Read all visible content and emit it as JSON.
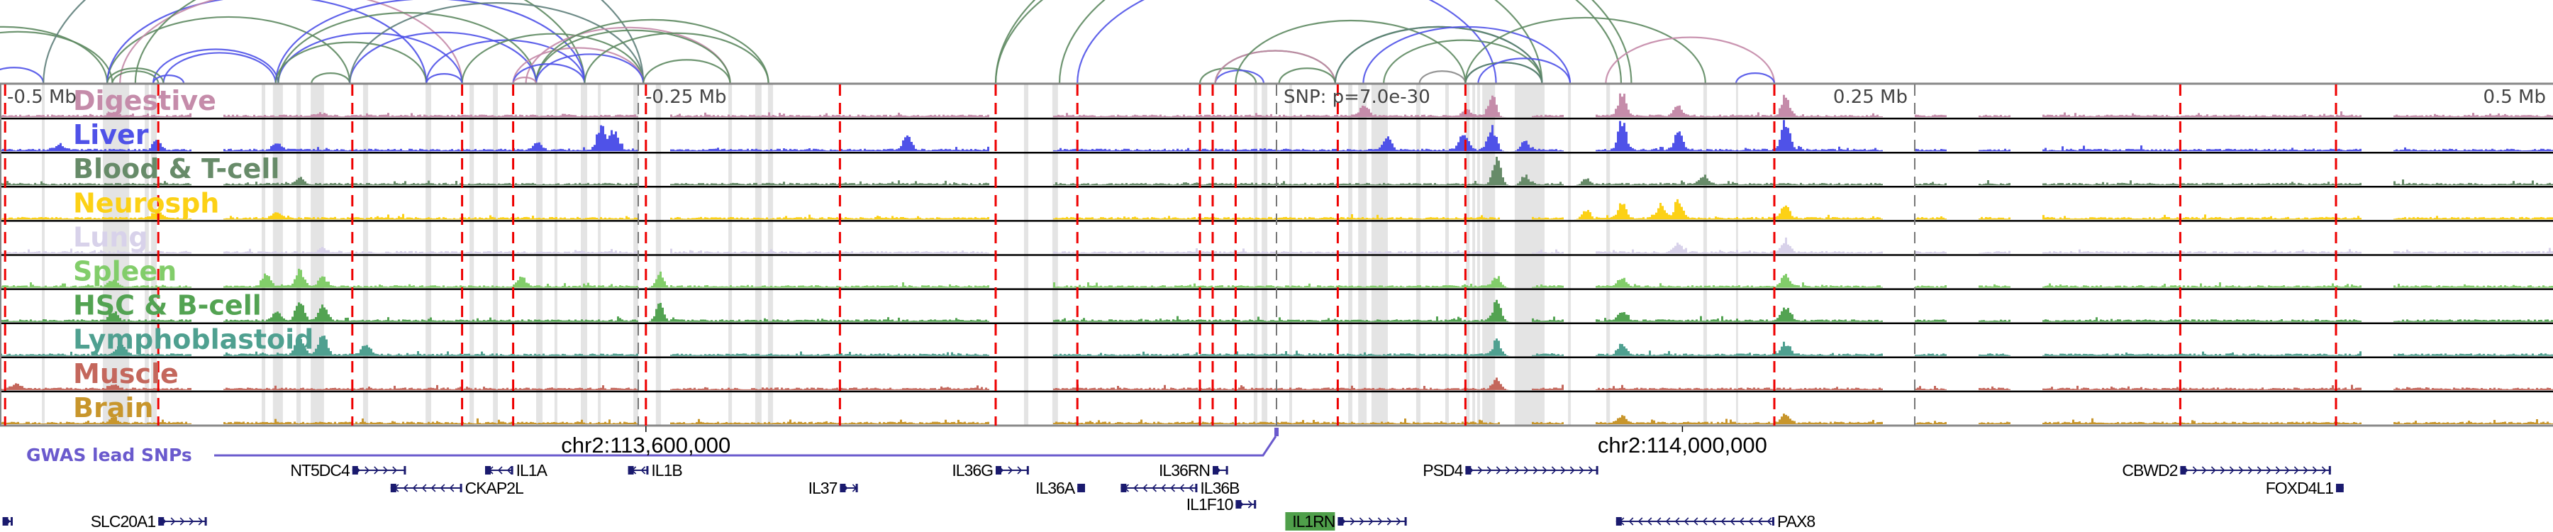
{
  "chart_data": {
    "type": "genome-browser-tracks",
    "region_units": "kb relative to lead SNP",
    "xlim": [
      -500,
      500
    ],
    "axis_labels": [
      {
        "kb": -500,
        "text": "-0.5 Mb",
        "anchor": "start"
      },
      {
        "kb": -250,
        "text": "-0.25 Mb",
        "anchor": "start"
      },
      {
        "kb": 0,
        "text": "SNP: p=7.0e-30",
        "anchor": "start"
      },
      {
        "kb": 250,
        "text": "0.25 Mb",
        "anchor": "end"
      },
      {
        "kb": 500,
        "text": "0.5 Mb",
        "anchor": "end"
      }
    ],
    "marker_lines_kb": [
      -250,
      0,
      250
    ],
    "red_lines_kb": [
      -498,
      -438,
      -362,
      -319,
      -299,
      -247,
      -171,
      -110,
      -78,
      -30,
      -25,
      -16,
      24,
      74,
      195,
      354,
      415
    ],
    "gray_bands_kb": [
      [
        -483.6,
        -482.5
      ],
      [
        -459.7,
        -449.4
      ],
      [
        -443.3,
        -441.7
      ],
      [
        -440.8,
        -438.6
      ],
      [
        -397.5,
        -396.1
      ],
      [
        -393.1,
        -389.2
      ],
      [
        -383.9,
        -382.2
      ],
      [
        -378.3,
        -373.1
      ],
      [
        -357.8,
        -355.8
      ],
      [
        -333.3,
        -331.1
      ],
      [
        -316.1,
        -314.4
      ],
      [
        -306.9,
        -305
      ],
      [
        -290,
        -287.5
      ],
      [
        -282.8,
        -281.7
      ],
      [
        -272.5,
        -270
      ],
      [
        -265.8,
        -264.7
      ],
      [
        -251.9,
        -250
      ],
      [
        -243.1,
        -241.1
      ],
      [
        -214.7,
        -213.3
      ],
      [
        -204.2,
        -201.7
      ],
      [
        -199.2,
        -197.2
      ],
      [
        -98.9,
        -97.2
      ],
      [
        -87.8,
        -85.6
      ],
      [
        -8.9,
        -7.5
      ],
      [
        -5.8,
        -3.6
      ],
      [
        5,
        6.1
      ],
      [
        28.1,
        29.7
      ],
      [
        32,
        35.3
      ],
      [
        37.2,
        43.6
      ],
      [
        54.7,
        56.4
      ],
      [
        66.1,
        67.5
      ],
      [
        74.2,
        75.6
      ],
      [
        76.7,
        77.8
      ],
      [
        78.6,
        79.7
      ],
      [
        80.6,
        85.6
      ],
      [
        93.3,
        105
      ],
      [
        114.2,
        115.3
      ],
      [
        129.2,
        130.6
      ],
      [
        167.2,
        168.6
      ],
      [
        180,
        180.8
      ]
    ],
    "arc_colors": {
      "blue": "#4f52e8",
      "green": "#5e8a62",
      "teal": "#5f7f7b",
      "pink": "#c48aa8",
      "gray": "#8a8a8a"
    },
    "arcs": [
      [
        -539,
        -458,
        "green"
      ],
      [
        -530,
        -456,
        "green"
      ],
      [
        -506,
        -483,
        "blue"
      ],
      [
        -483,
        -248,
        "teal"
      ],
      [
        -458,
        -363,
        "green"
      ],
      [
        -458,
        -333,
        "blue"
      ],
      [
        -453,
        -319,
        "pink"
      ],
      [
        -447,
        -271,
        "green"
      ],
      [
        -440,
        -391,
        "blue"
      ],
      [
        -436,
        -392,
        "blue"
      ],
      [
        -458,
        -436,
        "green"
      ],
      [
        -456,
        -438,
        "green"
      ],
      [
        -440,
        -428,
        "blue"
      ],
      [
        -391,
        -319,
        "blue"
      ],
      [
        -392,
        -271,
        "blue"
      ],
      [
        -392,
        -333,
        "green"
      ],
      [
        -391,
        -290,
        "green"
      ],
      [
        -378,
        -363,
        "green"
      ],
      [
        -363,
        -290,
        "blue"
      ],
      [
        -363,
        -248,
        "teal"
      ],
      [
        -333,
        -271,
        "blue"
      ],
      [
        -319,
        -248,
        "green"
      ],
      [
        -299,
        -248,
        "pink"
      ],
      [
        -294,
        -214,
        "pink"
      ],
      [
        -290,
        -199,
        "green"
      ],
      [
        -290,
        -214,
        "green"
      ],
      [
        -299,
        -271,
        "blue"
      ],
      [
        -290,
        -248,
        "blue"
      ],
      [
        -271,
        -199,
        "green"
      ],
      [
        -248,
        -214,
        "green"
      ],
      [
        -333,
        -319,
        "blue"
      ],
      [
        -299,
        -290,
        "pink"
      ],
      [
        -110,
        139,
        "green"
      ],
      [
        -85,
        135,
        "green"
      ],
      [
        -78,
        86,
        "blue"
      ],
      [
        -110,
        104,
        "green"
      ],
      [
        -30,
        -8,
        "green"
      ],
      [
        -24,
        -5,
        "blue"
      ],
      [
        -24,
        23,
        "green"
      ],
      [
        -24,
        23,
        "pink"
      ],
      [
        -16,
        74,
        "green"
      ],
      [
        1,
        23,
        "green"
      ],
      [
        23,
        104,
        "blue"
      ],
      [
        23,
        104,
        "green"
      ],
      [
        34,
        115,
        "blue"
      ],
      [
        42,
        104,
        "green"
      ],
      [
        56,
        74,
        "gray"
      ],
      [
        74,
        104,
        "blue"
      ],
      [
        74,
        104,
        "green"
      ],
      [
        79,
        115,
        "blue"
      ],
      [
        74,
        168,
        "green"
      ],
      [
        129,
        195,
        "pink"
      ],
      [
        180,
        195,
        "blue"
      ]
    ],
    "tracks": [
      {
        "name": "Digestive",
        "color": "#c58caa",
        "peaks": [
          [
            135,
            0.8
          ],
          [
            84,
            0.6
          ],
          [
            157,
            0.35
          ],
          [
            199,
            0.7
          ],
          [
            34,
            0.4
          ],
          [
            74,
            0.25
          ],
          [
            -456,
            0.1
          ],
          [
            -375,
            0.1
          ]
        ]
      },
      {
        "name": "Liver",
        "color": "#4f52e8",
        "peaks": [
          [
            135,
            1
          ],
          [
            157,
            0.6
          ],
          [
            199,
            1
          ],
          [
            84,
            0.75
          ],
          [
            73,
            0.65
          ],
          [
            43,
            0.45
          ],
          [
            97,
            0.35
          ],
          [
            -265,
            0.8
          ],
          [
            -260,
            0.7
          ],
          [
            -145,
            0.5
          ],
          [
            -290,
            0.25
          ],
          [
            -477,
            0.2
          ],
          [
            -439,
            0.3
          ],
          [
            -392,
            0.25
          ]
        ]
      },
      {
        "name": "Blood & T-cell",
        "color": "#678b69",
        "peaks": [
          [
            86,
            0.9
          ],
          [
            97,
            0.35
          ],
          [
            167,
            0.3
          ],
          [
            121,
            0.25
          ],
          [
            -383,
            0.2
          ]
        ]
      },
      {
        "name": "Neurosph",
        "color": "#fcd116",
        "peaks": [
          [
            157,
            0.6
          ],
          [
            150,
            0.45
          ],
          [
            135,
            0.5
          ],
          [
            121,
            0.35
          ],
          [
            199,
            0.45
          ],
          [
            -439,
            0.25
          ],
          [
            -392,
            0.2
          ]
        ]
      },
      {
        "name": "Lung",
        "color": "#d8d2ea",
        "peaks": [
          [
            199,
            0.4
          ],
          [
            157,
            0.3
          ],
          [
            -374,
            0.15
          ]
        ]
      },
      {
        "name": "Spleen",
        "color": "#82cd6a",
        "peaks": [
          [
            -383,
            0.55
          ],
          [
            -374,
            0.35
          ],
          [
            -456,
            0.25
          ],
          [
            -396,
            0.45
          ],
          [
            -296,
            0.3
          ],
          [
            -242,
            0.5
          ],
          [
            86,
            0.35
          ],
          [
            135,
            0.3
          ],
          [
            199,
            0.4
          ]
        ]
      },
      {
        "name": "HSC & B-cell",
        "color": "#53a352",
        "peaks": [
          [
            -383,
            0.75
          ],
          [
            -374,
            0.6
          ],
          [
            -392,
            0.3
          ],
          [
            -456,
            0.35
          ],
          [
            -242,
            0.6
          ],
          [
            86,
            0.7
          ],
          [
            199,
            0.45
          ],
          [
            135,
            0.3
          ]
        ]
      },
      {
        "name": "Lymphoblastoid",
        "color": "#4fa090",
        "peaks": [
          [
            -383,
            0.6
          ],
          [
            -374,
            0.7
          ],
          [
            -357,
            0.35
          ],
          [
            -453,
            0.4
          ],
          [
            86,
            0.5
          ],
          [
            135,
            0.4
          ],
          [
            199,
            0.4
          ]
        ]
      },
      {
        "name": "Muscle",
        "color": "#c4675c",
        "peaks": [
          [
            -494,
            0.2
          ],
          [
            -456,
            0.15
          ],
          [
            86,
            0.35
          ]
        ]
      },
      {
        "name": "Brain",
        "color": "#c8962c",
        "peaks": [
          [
            -456,
            0.15
          ],
          [
            135,
            0.25
          ],
          [
            199,
            0.3
          ]
        ]
      }
    ],
    "gwas": {
      "label": "GWAS lead SNPs",
      "snp_kb": 0,
      "color": "#6a5acd"
    },
    "coordinates": [
      {
        "kb": -247,
        "text": "chr2:113,600,000"
      },
      {
        "kb": 159,
        "text": "chr2:114,000,000"
      }
    ],
    "genes": [
      {
        "name": "NT5DC4",
        "start": -362,
        "end": -341,
        "strand": "+",
        "row": 0,
        "label": "left"
      },
      {
        "name": "IL1A",
        "start": -310,
        "end": -299,
        "strand": "-",
        "row": 0,
        "label": "right"
      },
      {
        "name": "IL1B",
        "start": -254,
        "end": -246,
        "strand": "-",
        "row": 0,
        "label": "right"
      },
      {
        "name": "CKAP2L",
        "start": -347,
        "end": -319,
        "strand": "-",
        "row": 1,
        "label": "right"
      },
      {
        "name": "IL37",
        "start": -171,
        "end": -164,
        "strand": "+",
        "row": 1,
        "label": "left"
      },
      {
        "name": "SLC20A1",
        "start": -438,
        "end": -419,
        "strand": "+",
        "row": 3,
        "label": "left"
      },
      {
        "name": "",
        "start": -499,
        "end": -495,
        "strand": "+",
        "row": 3,
        "label": "none"
      },
      {
        "name": "IL36G",
        "start": -110,
        "end": -97,
        "strand": "+",
        "row": 0,
        "label": "left"
      },
      {
        "name": "IL36RN",
        "start": -25,
        "end": -19,
        "strand": "+",
        "row": 0,
        "label": "left"
      },
      {
        "name": "IL36A",
        "start": -78,
        "end": -75,
        "strand": "+",
        "row": 1,
        "label": "left"
      },
      {
        "name": "IL36B",
        "start": -61,
        "end": -31,
        "strand": "-",
        "row": 1,
        "label": "right"
      },
      {
        "name": "IL1F10",
        "start": -16,
        "end": -8,
        "strand": "+",
        "row": 2,
        "label": "left"
      },
      {
        "name": "IL1RN",
        "start": 24,
        "end": 51,
        "strand": "+",
        "row": 3,
        "label": "left",
        "highlight": "#4f9f4a"
      },
      {
        "name": "PSD4",
        "start": 74,
        "end": 126,
        "strand": "+",
        "row": 0,
        "label": "left"
      },
      {
        "name": "PAX8",
        "start": 133,
        "end": 195,
        "strand": "-",
        "row": 3,
        "label": "right"
      },
      {
        "name": "CBWD2",
        "start": 354,
        "end": 413,
        "strand": "+",
        "row": 0,
        "label": "left"
      },
      {
        "name": "FOXD4L1",
        "start": 415,
        "end": 418,
        "strand": "+",
        "row": 1,
        "label": "left"
      }
    ],
    "gene_color": "#1a1a6e"
  }
}
